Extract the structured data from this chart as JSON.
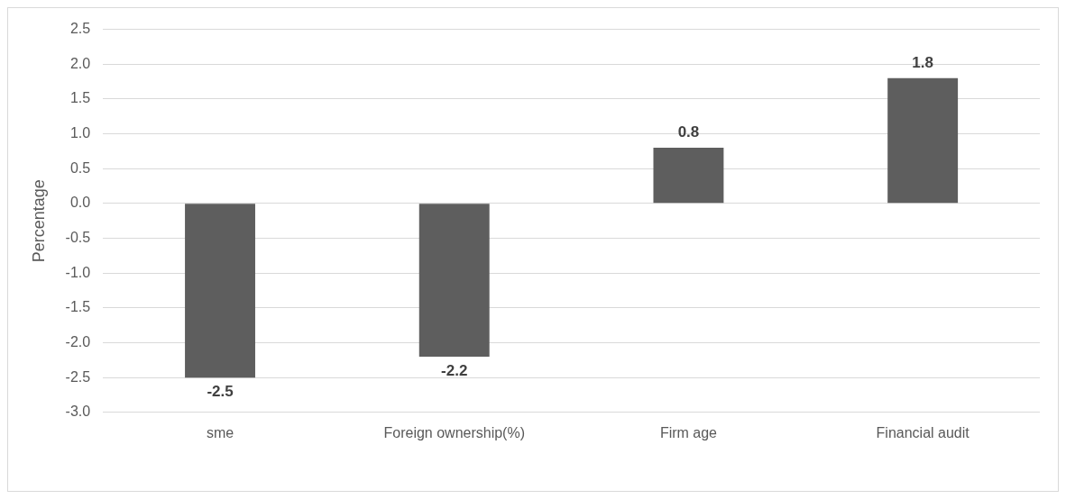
{
  "chart_data": {
    "type": "bar",
    "ylabel": "Percentage",
    "categories": [
      "sme",
      "Foreign ownership(%)",
      "Firm age",
      "Financial audit"
    ],
    "values": [
      -2.5,
      -2.2,
      0.8,
      1.8
    ],
    "color": "#5e5e5e",
    "ylim": [
      -3.0,
      2.5
    ],
    "yticks": [
      {
        "value": -3.0,
        "label": "-3.0"
      },
      {
        "value": -2.5,
        "label": "-2.5"
      },
      {
        "value": -2.0,
        "label": "-2.0"
      },
      {
        "value": -1.5,
        "label": "-1.5"
      },
      {
        "value": -1.0,
        "label": "-1.0"
      },
      {
        "value": -0.5,
        "label": "-0.5"
      },
      {
        "value": 0,
        "label": "0.0"
      },
      {
        "value": 0.5,
        "label": "0.5"
      },
      {
        "value": 1.0,
        "label": "1.0"
      },
      {
        "value": 1.5,
        "label": "1.5"
      },
      {
        "value": 2.0,
        "label": "2.0"
      },
      {
        "value": 2.5,
        "label": "2.5"
      }
    ],
    "grid": "y",
    "data_labels": true,
    "legend": false
  }
}
